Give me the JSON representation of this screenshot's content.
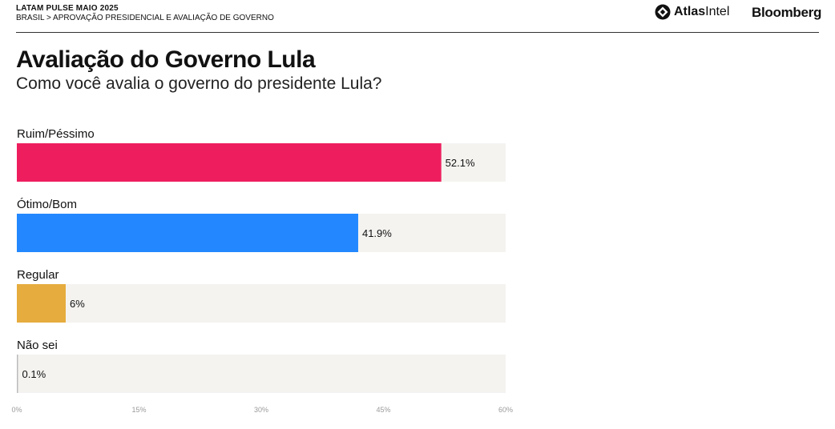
{
  "header": {
    "top_line": "LATAM PULSE MAIO 2025",
    "breadcrumb": "BRASIL > APROVAÇÃO PRESIDENCIAL E AVALIAÇÃO DE GOVERNO"
  },
  "logos": {
    "atlas_bold": "Atlas",
    "atlas_regular": "Intel",
    "bloomberg": "Bloomberg"
  },
  "chart_data": {
    "type": "bar",
    "orientation": "horizontal",
    "title": "Avaliação do Governo Lula",
    "subtitle": "Como você avalia o governo do presidente Lula?",
    "categories": [
      "Ruim/Péssimo",
      "Ótimo/Bom",
      "Regular",
      "Não sei"
    ],
    "values": [
      52.1,
      41.9,
      6,
      0.1
    ],
    "value_labels": [
      "52.1%",
      "41.9%",
      "6%",
      "0.1%"
    ],
    "colors": [
      "#EE1E5E",
      "#2388FF",
      "#E6AC3E",
      "#BBBBBB"
    ],
    "track_color": "#F4F3F0",
    "xlim": [
      0,
      60
    ],
    "ticks": [
      0,
      15,
      30,
      45,
      60
    ],
    "tick_labels": [
      "0%",
      "15%",
      "30%",
      "45%",
      "60%"
    ],
    "grid": false,
    "legend": "none"
  }
}
